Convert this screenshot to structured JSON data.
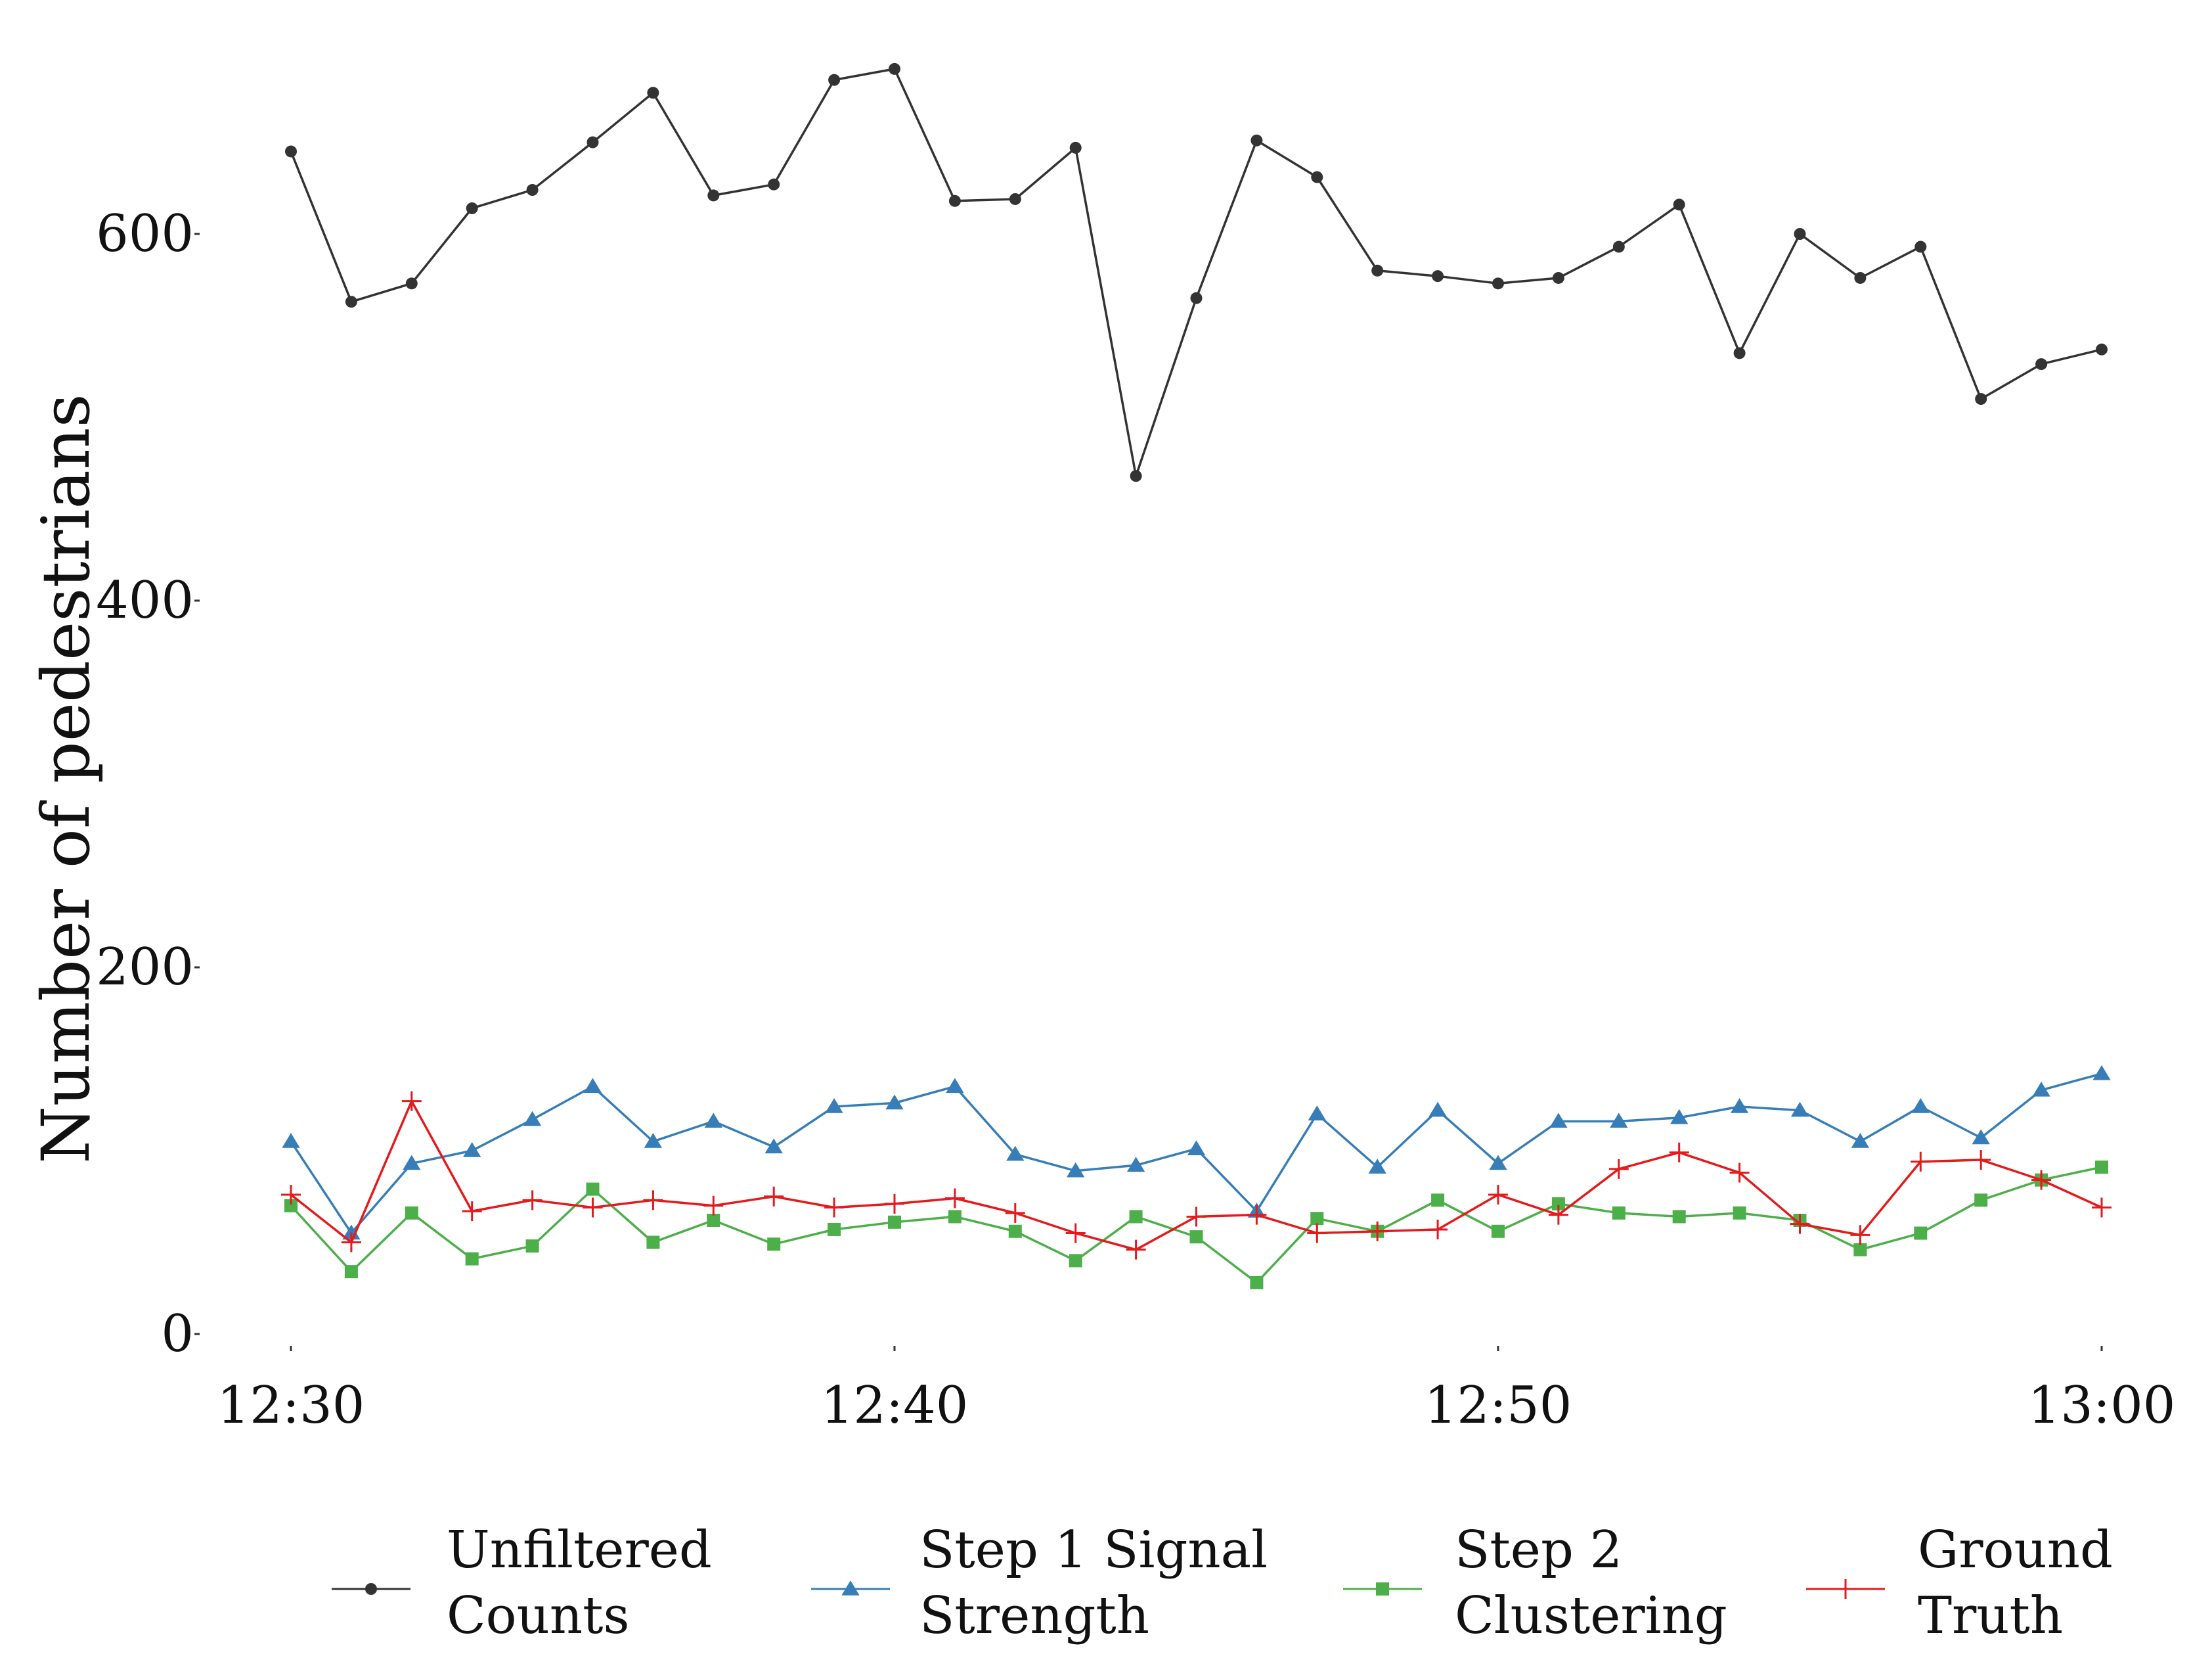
{
  "chart_data": {
    "type": "line",
    "title": "",
    "xlabel": "",
    "ylabel": "Number of pedestrians",
    "x_ticks": [
      "12:30",
      "12:40",
      "12:50",
      "13:00"
    ],
    "x_tick_minutes": [
      0,
      10,
      20,
      30
    ],
    "y_ticks": [
      "0",
      "200",
      "400",
      "600"
    ],
    "y_tick_values": [
      0,
      200,
      400,
      600
    ],
    "xlim": [
      0,
      30
    ],
    "ylim": [
      0,
      700
    ],
    "grid": false,
    "legend_position": "bottom",
    "x": [
      "12:30",
      "12:31",
      "12:32",
      "12:33",
      "12:34",
      "12:35",
      "12:36",
      "12:37",
      "12:38",
      "12:39",
      "12:40",
      "12:41",
      "12:42",
      "12:43",
      "12:44",
      "12:45",
      "12:46",
      "12:47",
      "12:48",
      "12:49",
      "12:50",
      "12:51",
      "12:52",
      "12:53",
      "12:54",
      "12:55",
      "12:56",
      "12:57",
      "12:58",
      "12:59",
      "13:00"
    ],
    "series": [
      {
        "name": "Unfiltered Counts",
        "color": "#333333",
        "marker": "circle",
        "values": [
          645,
          563,
          573,
          614,
          624,
          650,
          677,
          621,
          627,
          684,
          690,
          618,
          619,
          647,
          468,
          565,
          651,
          631,
          580,
          577,
          573,
          576,
          593,
          616,
          535,
          600,
          576,
          593,
          510,
          529,
          537
        ]
      },
      {
        "name": "Step 1 Signal Strength",
        "color": "#377eb8",
        "marker": "triangle",
        "values": [
          105,
          55,
          93,
          100,
          117,
          135,
          105,
          116,
          102,
          124,
          126,
          135,
          98,
          89,
          92,
          101,
          67,
          120,
          91,
          122,
          93,
          116,
          116,
          118,
          124,
          122,
          105,
          124,
          107,
          133,
          142
        ]
      },
      {
        "name": "Step 2 Clustering",
        "color": "#4daf4a",
        "marker": "square",
        "values": [
          70,
          34,
          66,
          41,
          48,
          79,
          50,
          62,
          49,
          57,
          61,
          64,
          56,
          40,
          64,
          53,
          28,
          63,
          56,
          73,
          56,
          71,
          66,
          64,
          66,
          62,
          46,
          55,
          73,
          84,
          91
        ]
      },
      {
        "name": "Ground Truth",
        "color": "#e41a1c",
        "marker": "plus",
        "values": [
          76,
          50,
          127,
          67,
          73,
          69,
          73,
          70,
          75,
          69,
          71,
          74,
          66,
          55,
          46,
          64,
          65,
          55,
          56,
          57,
          76,
          65,
          90,
          99,
          88,
          60,
          54,
          94,
          95,
          84,
          69
        ]
      }
    ]
  }
}
